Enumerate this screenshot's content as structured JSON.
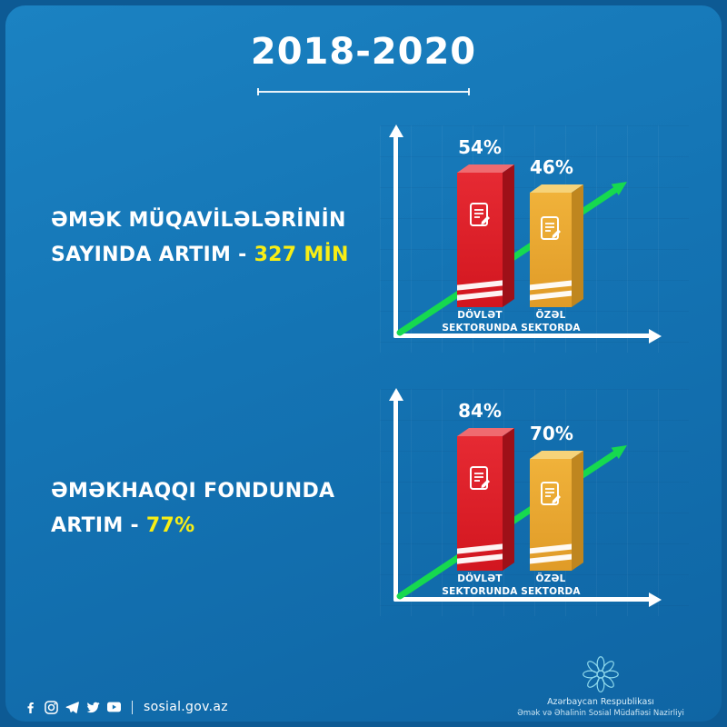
{
  "title": "2018-2020",
  "colors": {
    "background": "#1474b4",
    "accent_yellow": "#f8ee15",
    "bar_red": "#e62a33",
    "bar_gold": "#f0b23a",
    "arrow_green": "#16d94f",
    "axis_white": "#ffffff",
    "emblem_teal": "#8ed9ec"
  },
  "charts": [
    {
      "heading_line1": "ƏMƏK MÜQAVİLƏLƏRİNİN",
      "heading_line2_prefix": "SAYINDA ARTIM - ",
      "heading_highlight": "327 MİN",
      "bars": [
        {
          "value_label": "54%",
          "label_line1": "DÖVLƏT",
          "label_line2": "SEKTORUNDA"
        },
        {
          "value_label": "46%",
          "label_line1": "ÖZƏL",
          "label_line2": "SEKTORDA"
        }
      ]
    },
    {
      "heading_line1": "ƏMƏKHAQQI FONDUNDA",
      "heading_line2_prefix": "ARTIM - ",
      "heading_highlight": "77%",
      "bars": [
        {
          "value_label": "84%",
          "label_line1": "DÖVLƏT",
          "label_line2": "SEKTORUNDA"
        },
        {
          "value_label": "70%",
          "label_line1": "ÖZƏL",
          "label_line2": "SEKTORDA"
        }
      ]
    }
  ],
  "chart_data": [
    {
      "type": "bar",
      "title": "ƏMƏK MÜQAVİLƏLƏRİNİN SAYINDA ARTIM - 327 MİN",
      "categories": [
        "DÖVLƏT SEKTORUNDA",
        "ÖZƏL SEKTORDA"
      ],
      "values": [
        54,
        46
      ],
      "unit": "%",
      "ylim": [
        0,
        100
      ],
      "legend_position": "none",
      "annotations": [
        "green upward trend arrow",
        "white x/y axes with arrowheads",
        "document-with-pen icon on each bar"
      ]
    },
    {
      "type": "bar",
      "title": "ƏMƏKHAQQI FONDUNDA ARTIM - 77%",
      "categories": [
        "DÖVLƏT SEKTORUNDA",
        "ÖZƏL SEKTORDA"
      ],
      "values": [
        84,
        70
      ],
      "unit": "%",
      "ylim": [
        0,
        100
      ],
      "legend_position": "none",
      "annotations": [
        "green upward trend arrow",
        "white x/y axes with arrowheads",
        "document-with-pen icon on each bar"
      ]
    }
  ],
  "footer": {
    "website": "sosial.gov.az",
    "social_icons": [
      "facebook-icon",
      "instagram-icon",
      "telegram-icon",
      "twitter-icon",
      "youtube-icon"
    ],
    "ministry_line1": "Azərbaycan Respublikası",
    "ministry_line2": "Əmək və Əhalinin Sosial Müdafiəsi Nazirliyi"
  }
}
